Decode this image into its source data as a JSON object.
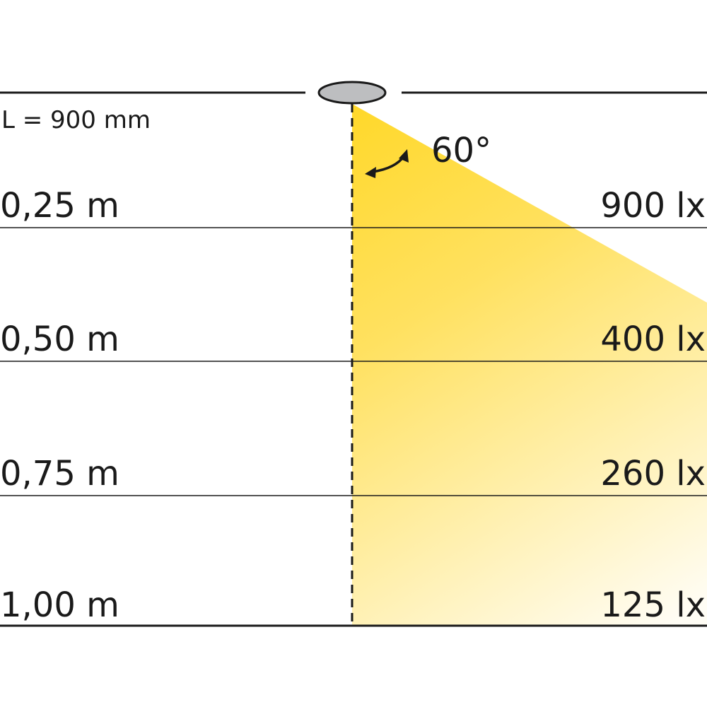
{
  "fixture_length": "L = 900 mm",
  "beam_angle": "60°",
  "colors": {
    "beam": "#FFD82A",
    "fixture": "#BDBEC0",
    "line": "#1a1a1a"
  },
  "rows": [
    {
      "distance": "0,25 m",
      "illuminance": "900 lx"
    },
    {
      "distance": "0,50 m",
      "illuminance": "400 lx"
    },
    {
      "distance": "0,75 m",
      "illuminance": "260 lx"
    },
    {
      "distance": "1,00 m",
      "illuminance": "125 lx"
    }
  ]
}
